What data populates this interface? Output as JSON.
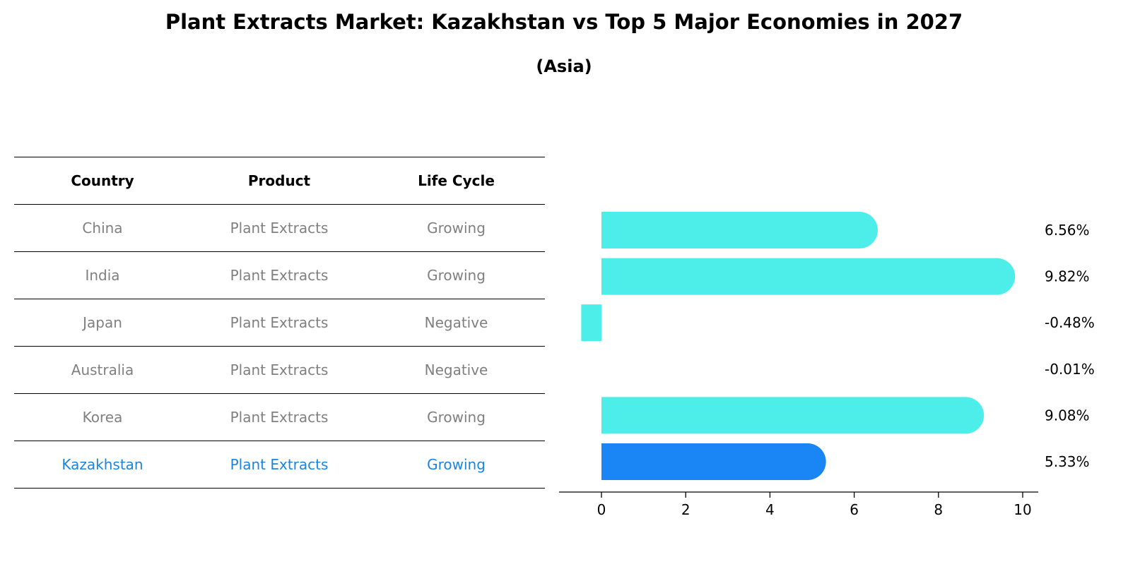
{
  "title": "Plant Extracts Market: Kazakhstan vs Top 5 Major Economies in 2027",
  "subtitle": "(Asia)",
  "table": {
    "headers": [
      "Country",
      "Product",
      "Life Cycle"
    ],
    "rows": [
      {
        "country": "China",
        "product": "Plant Extracts",
        "life_cycle": "Growing",
        "highlight": false
      },
      {
        "country": "India",
        "product": "Plant Extracts",
        "life_cycle": "Growing",
        "highlight": false
      },
      {
        "country": "Japan",
        "product": "Plant Extracts",
        "life_cycle": "Negative",
        "highlight": false
      },
      {
        "country": "Australia",
        "product": "Plant Extracts",
        "life_cycle": "Negative",
        "highlight": false
      },
      {
        "country": "Korea",
        "product": "Plant Extracts",
        "life_cycle": "Growing",
        "highlight": false
      },
      {
        "country": "Kazakhstan",
        "product": "Plant Extracts",
        "life_cycle": "Growing",
        "highlight": true
      }
    ]
  },
  "chart_data": {
    "type": "bar",
    "orientation": "horizontal",
    "categories": [
      "China",
      "India",
      "Japan",
      "Australia",
      "Korea",
      "Kazakhstan"
    ],
    "values": [
      6.56,
      9.82,
      -0.48,
      -0.01,
      9.08,
      5.33
    ],
    "value_labels": [
      "6.56%",
      "9.82%",
      "-0.48%",
      "-0.01%",
      "9.08%",
      "5.33%"
    ],
    "xlim": [
      -1,
      10.3
    ],
    "xticks": [
      0,
      2,
      4,
      6,
      8,
      10
    ],
    "colors": {
      "default": "#4deeea",
      "highlight": "#1a85f5"
    },
    "highlight_index": 5
  }
}
